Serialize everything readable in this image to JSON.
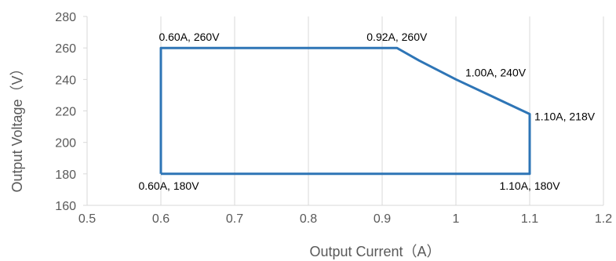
{
  "chart_data": {
    "type": "line",
    "title": "",
    "xlabel": "Output Current（A）",
    "ylabel": "Output Voltage（V）",
    "xlim": [
      0.5,
      1.2
    ],
    "ylim": [
      160,
      280
    ],
    "xticks": [
      0.5,
      0.6,
      0.7,
      0.8,
      0.9,
      1.0,
      1.1,
      1.2
    ],
    "xtick_labels": [
      "0.5",
      "0.6",
      "0.7",
      "0.8",
      "0.9",
      "1",
      "1.1",
      "1.2"
    ],
    "yticks": [
      160,
      180,
      200,
      220,
      240,
      260,
      280
    ],
    "ytick_labels": [
      "160",
      "180",
      "200",
      "220",
      "240",
      "260",
      "280"
    ],
    "grid": "vertical",
    "legend": "none",
    "line_color": "#2E75B6",
    "grid_color": "#D9D9D9",
    "series": [
      {
        "points": [
          {
            "x": 0.6,
            "y": 180
          },
          {
            "x": 0.6,
            "y": 260
          },
          {
            "x": 0.92,
            "y": 260
          },
          {
            "x": 0.95,
            "y": 252
          },
          {
            "x": 1.0,
            "y": 240
          },
          {
            "x": 1.05,
            "y": 229
          },
          {
            "x": 1.1,
            "y": 218
          },
          {
            "x": 1.1,
            "y": 180
          },
          {
            "x": 0.6,
            "y": 180
          }
        ]
      }
    ],
    "annotations": [
      {
        "text": "0.60A, 260V",
        "x": 0.6,
        "y": 260
      },
      {
        "text": "0.92A, 260V",
        "x": 0.92,
        "y": 260
      },
      {
        "text": "1.00A, 240V",
        "x": 1.0,
        "y": 240
      },
      {
        "text": "1.10A, 218V",
        "x": 1.1,
        "y": 218
      },
      {
        "text": "0.60A, 180V",
        "x": 0.6,
        "y": 180
      },
      {
        "text": "1.10A, 180V",
        "x": 1.1,
        "y": 180
      }
    ]
  }
}
